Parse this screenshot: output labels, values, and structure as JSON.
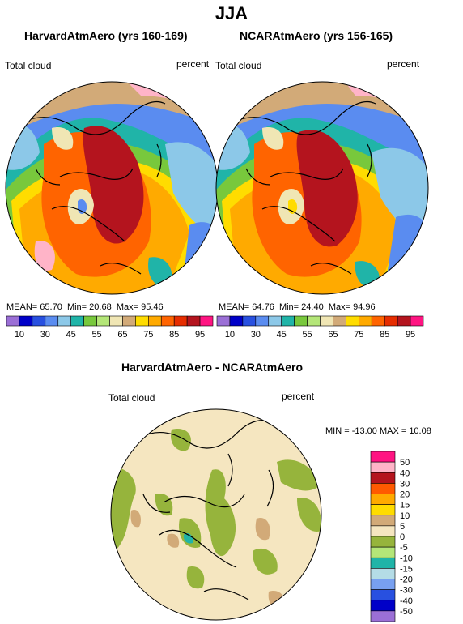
{
  "title": "JJA",
  "panels": [
    {
      "title": "HarvardAtmAero (yrs 160-169)",
      "left_label": "Total cloud",
      "right_label": "percent",
      "stats": {
        "mean_label": "MEAN=",
        "mean": "65.70",
        "min_label": "Min=",
        "min": "20.68",
        "max_label": "Max=",
        "max": "95.46"
      }
    },
    {
      "title": "NCARAtmAero (yrs 156-165)",
      "left_label": "Total cloud",
      "right_label": "percent",
      "stats": {
        "mean_label": "MEAN=",
        "mean": "64.76",
        "min_label": "Min=",
        "min": "24.40",
        "max_label": "Max=",
        "max": "94.96"
      }
    }
  ],
  "abs_colorbar": {
    "colors": [
      "#9b6fd6",
      "#0000c8",
      "#2850e0",
      "#5a8cf0",
      "#8cc8e8",
      "#20b4a8",
      "#78c83c",
      "#b4e678",
      "#f0e6b4",
      "#d2aa78",
      "#ffdc00",
      "#ffaa00",
      "#ff6400",
      "#e62d00",
      "#b4141e",
      "#ff1482"
    ],
    "labels": [
      "10",
      "30",
      "45",
      "55",
      "65",
      "75",
      "85",
      "95"
    ]
  },
  "diff": {
    "title": "HarvardAtmAero - NCARAtmAero",
    "left_label": "Total cloud",
    "right_label": "percent",
    "minmax": "MIN = -13.00  MAX =  10.08",
    "colors": [
      "#ff1482",
      "#ffb4c8",
      "#b4141e",
      "#ff5a00",
      "#ffaa00",
      "#ffdc00",
      "#d2aa78",
      "#f5e6c0",
      "#96b43c",
      "#b4e678",
      "#20b4a8",
      "#b4dce6",
      "#78a0f0",
      "#2850e0",
      "#0000c8",
      "#9b6fd6"
    ],
    "labels": [
      "50",
      "40",
      "30",
      "20",
      "15",
      "10",
      "5",
      "0",
      "-5",
      "-10",
      "-15",
      "-20",
      "-30",
      "-40",
      "-50"
    ]
  }
}
